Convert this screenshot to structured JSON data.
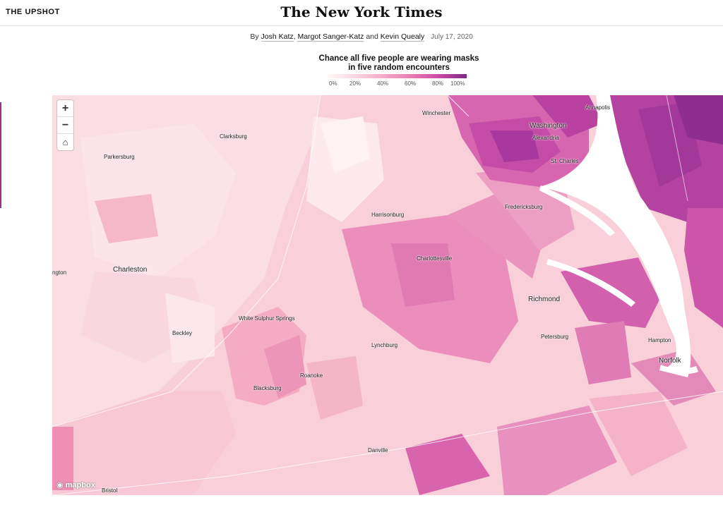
{
  "header": {
    "section": "THE UPSHOT",
    "masthead": "The New York Times"
  },
  "byline": {
    "prefix": "By",
    "authors": [
      "Josh Katz",
      "Margot Sanger-Katz",
      "Kevin Quealy"
    ],
    "sep1": ",",
    "sep2": "and",
    "date": "July 17, 2020"
  },
  "legend": {
    "title_line1": "Chance all five people are wearing masks",
    "title_line2": "in five random encounters",
    "ticks": [
      "0%",
      "20%",
      "40%",
      "60%",
      "80%",
      "100%"
    ]
  },
  "map": {
    "cities": [
      "Winchester",
      "Annapolis",
      "Washington",
      "Alexandria",
      "Clarksburg",
      "St. Charles",
      "Parkersburg",
      "Harrisonburg",
      "Fredericksburg",
      "Charlottesville",
      "Charleston",
      "Richmond",
      "White Sulphur Springs",
      "Beckley",
      "Petersburg",
      "Hampton",
      "Lynchburg",
      "Norfolk",
      "Roanoke",
      "Blacksburg",
      "Danville",
      "Bristol",
      "ngton"
    ],
    "controls": {
      "zoom_in": "+",
      "zoom_out": "−",
      "home": "⌂"
    },
    "attribution": "mapbox"
  },
  "colors": {
    "low": "#fff7f7",
    "mid": "#f5a9c6",
    "high": "#cc49a5",
    "max": "#7b2b85",
    "water": "#ffffff"
  }
}
